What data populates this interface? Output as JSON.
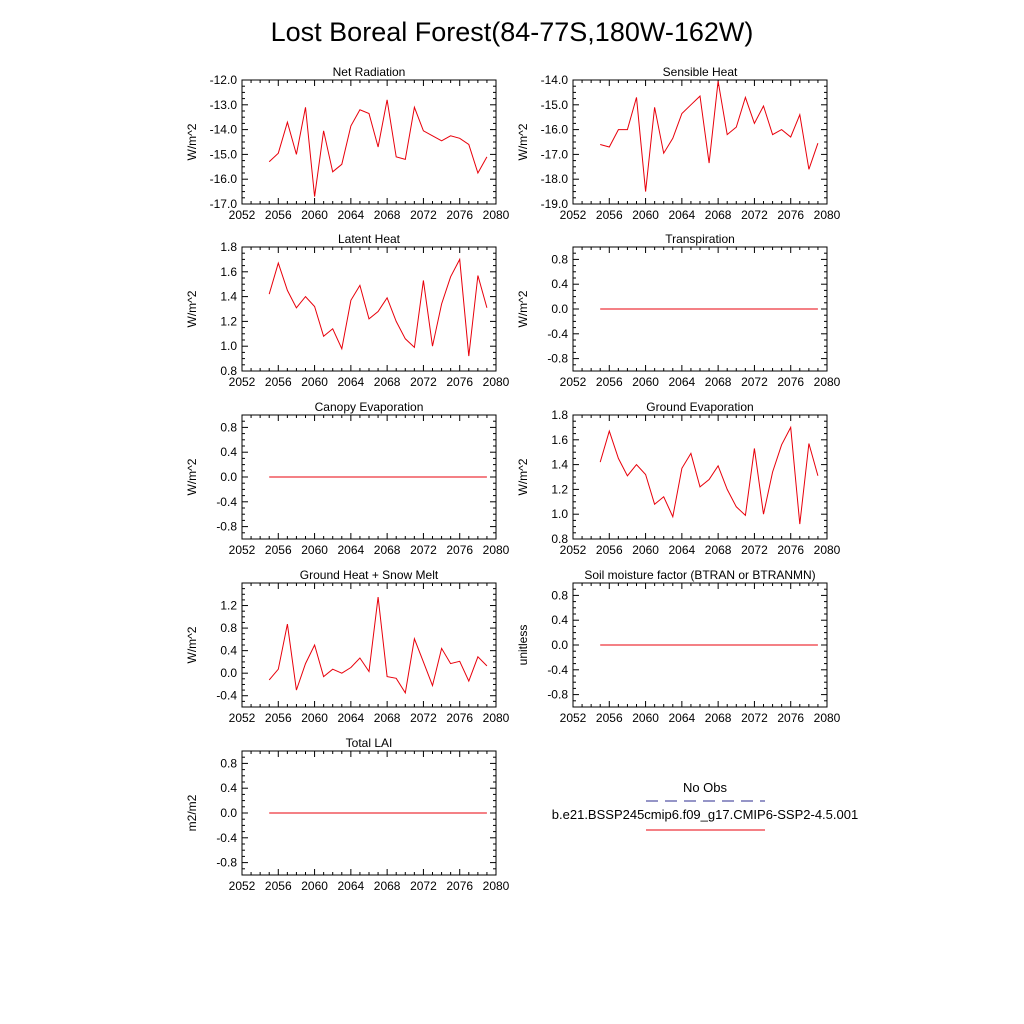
{
  "title": "Lost Boreal Forest(84-77S,180W-162W)",
  "colors": {
    "model_line": "#e8000b",
    "obs_line": "#2b2b8f",
    "axis": "#000000",
    "background": "#ffffff"
  },
  "legend": {
    "obs_label": "No Obs",
    "model_label": "b.e21.BSSP245cmip6.f09_g17.CMIP6-SSP2-4.5.001",
    "obs_style": "dashed",
    "model_style": "solid"
  },
  "chart_data": [
    {
      "type": "line",
      "title": "Net Radiation",
      "ylabel": "W/m^2",
      "xlim": [
        2052,
        2080
      ],
      "ylim": [
        -17.0,
        -12.0
      ],
      "xticks": [
        2052,
        2056,
        2060,
        2064,
        2068,
        2072,
        2076,
        2080
      ],
      "xtick_labels": [
        "2052",
        "2056",
        "2060",
        "2064",
        "2068",
        "2072",
        "2076",
        "2080"
      ],
      "yticks": [
        -17.0,
        -16.0,
        -15.0,
        -14.0,
        -13.0,
        -12.0
      ],
      "ytick_labels": [
        "-17.0",
        "-16.0",
        "-15.0",
        "-14.0",
        "-13.0",
        "-12.0"
      ],
      "x": [
        2055,
        2056,
        2057,
        2058,
        2059,
        2060,
        2061,
        2062,
        2063,
        2064,
        2065,
        2066,
        2067,
        2068,
        2069,
        2070,
        2071,
        2072,
        2073,
        2074,
        2075,
        2076,
        2077,
        2078,
        2079
      ],
      "series": [
        {
          "values": [
            -15.3,
            -14.95,
            -13.7,
            -15.0,
            -13.1,
            -16.7,
            -14.05,
            -15.7,
            -15.4,
            -13.85,
            -13.2,
            -13.35,
            -14.7,
            -12.8,
            -15.1,
            -15.2,
            -13.1,
            -14.05,
            -14.25,
            -14.45,
            -14.25,
            -14.35,
            -14.6,
            -15.75,
            -15.1
          ]
        }
      ]
    },
    {
      "type": "line",
      "title": "Sensible Heat",
      "ylabel": "W/m^2",
      "xlim": [
        2052,
        2080
      ],
      "ylim": [
        -19.0,
        -14.0
      ],
      "xticks": [
        2052,
        2056,
        2060,
        2064,
        2068,
        2072,
        2076,
        2080
      ],
      "xtick_labels": [
        "2052",
        "2056",
        "2060",
        "2064",
        "2068",
        "2072",
        "2076",
        "2080"
      ],
      "yticks": [
        -19.0,
        -18.0,
        -17.0,
        -16.0,
        -15.0,
        -14.0
      ],
      "ytick_labels": [
        "-19.0",
        "-18.0",
        "-17.0",
        "-16.0",
        "-15.0",
        "-14.0"
      ],
      "x": [
        2055,
        2056,
        2057,
        2058,
        2059,
        2060,
        2061,
        2062,
        2063,
        2064,
        2065,
        2066,
        2067,
        2068,
        2069,
        2070,
        2071,
        2072,
        2073,
        2074,
        2075,
        2076,
        2077,
        2078,
        2079
      ],
      "series": [
        {
          "values": [
            -16.6,
            -16.7,
            -16.0,
            -16.0,
            -14.7,
            -18.5,
            -15.1,
            -16.95,
            -16.35,
            -15.35,
            -15.0,
            -14.65,
            -17.35,
            -14.05,
            -16.2,
            -15.9,
            -14.7,
            -15.75,
            -15.05,
            -16.2,
            -16.0,
            -16.3,
            -15.4,
            -17.6,
            -16.55
          ]
        }
      ]
    },
    {
      "type": "line",
      "title": "Latent Heat",
      "ylabel": "W/m^2",
      "xlim": [
        2052,
        2080
      ],
      "ylim": [
        0.8,
        1.8
      ],
      "xticks": [
        2052,
        2056,
        2060,
        2064,
        2068,
        2072,
        2076,
        2080
      ],
      "xtick_labels": [
        "2052",
        "2056",
        "2060",
        "2064",
        "2068",
        "2072",
        "2076",
        "2080"
      ],
      "yticks": [
        0.8,
        1.0,
        1.2,
        1.4,
        1.6,
        1.8
      ],
      "ytick_labels": [
        "0.8",
        "1.0",
        "1.2",
        "1.4",
        "1.6",
        "1.8"
      ],
      "x": [
        2055,
        2056,
        2057,
        2058,
        2059,
        2060,
        2061,
        2062,
        2063,
        2064,
        2065,
        2066,
        2067,
        2068,
        2069,
        2070,
        2071,
        2072,
        2073,
        2074,
        2075,
        2076,
        2077,
        2078,
        2079
      ],
      "series": [
        {
          "values": [
            1.42,
            1.67,
            1.45,
            1.31,
            1.4,
            1.32,
            1.08,
            1.14,
            0.98,
            1.37,
            1.49,
            1.22,
            1.28,
            1.39,
            1.2,
            1.06,
            0.99,
            1.53,
            1.0,
            1.34,
            1.56,
            1.7,
            0.92,
            1.57,
            1.31
          ]
        }
      ]
    },
    {
      "type": "line",
      "title": "Transpiration",
      "ylabel": "W/m^2",
      "xlim": [
        2052,
        2080
      ],
      "ylim": [
        -1.0,
        1.0
      ],
      "xticks": [
        2052,
        2056,
        2060,
        2064,
        2068,
        2072,
        2076,
        2080
      ],
      "xtick_labels": [
        "2052",
        "2056",
        "2060",
        "2064",
        "2068",
        "2072",
        "2076",
        "2080"
      ],
      "yticks": [
        -0.8,
        -0.4,
        0.0,
        0.4,
        0.8
      ],
      "ytick_labels": [
        "-0.8",
        "-0.4",
        "0.0",
        "0.4",
        "0.8"
      ],
      "x": [
        2055,
        2079
      ],
      "series": [
        {
          "values": [
            0.0,
            0.0
          ]
        }
      ]
    },
    {
      "type": "line",
      "title": "Canopy Evaporation",
      "ylabel": "W/m^2",
      "xlim": [
        2052,
        2080
      ],
      "ylim": [
        -1.0,
        1.0
      ],
      "xticks": [
        2052,
        2056,
        2060,
        2064,
        2068,
        2072,
        2076,
        2080
      ],
      "xtick_labels": [
        "2052",
        "2056",
        "2060",
        "2064",
        "2068",
        "2072",
        "2076",
        "2080"
      ],
      "yticks": [
        -0.8,
        -0.4,
        0.0,
        0.4,
        0.8
      ],
      "ytick_labels": [
        "-0.8",
        "-0.4",
        "0.0",
        "0.4",
        "0.8"
      ],
      "x": [
        2055,
        2079
      ],
      "series": [
        {
          "values": [
            0.0,
            0.0
          ]
        }
      ]
    },
    {
      "type": "line",
      "title": "Ground Evaporation",
      "ylabel": "W/m^2",
      "xlim": [
        2052,
        2080
      ],
      "ylim": [
        0.8,
        1.8
      ],
      "xticks": [
        2052,
        2056,
        2060,
        2064,
        2068,
        2072,
        2076,
        2080
      ],
      "xtick_labels": [
        "2052",
        "2056",
        "2060",
        "2064",
        "2068",
        "2072",
        "2076",
        "2080"
      ],
      "yticks": [
        0.8,
        1.0,
        1.2,
        1.4,
        1.6,
        1.8
      ],
      "ytick_labels": [
        "0.8",
        "1.0",
        "1.2",
        "1.4",
        "1.6",
        "1.8"
      ],
      "x": [
        2055,
        2056,
        2057,
        2058,
        2059,
        2060,
        2061,
        2062,
        2063,
        2064,
        2065,
        2066,
        2067,
        2068,
        2069,
        2070,
        2071,
        2072,
        2073,
        2074,
        2075,
        2076,
        2077,
        2078,
        2079
      ],
      "series": [
        {
          "values": [
            1.42,
            1.67,
            1.45,
            1.31,
            1.4,
            1.32,
            1.08,
            1.14,
            0.98,
            1.37,
            1.49,
            1.22,
            1.28,
            1.39,
            1.2,
            1.06,
            0.99,
            1.53,
            1.0,
            1.34,
            1.56,
            1.7,
            0.92,
            1.57,
            1.31
          ]
        }
      ]
    },
    {
      "type": "line",
      "title": "Ground Heat + Snow Melt",
      "ylabel": "W/m^2",
      "xlim": [
        2052,
        2080
      ],
      "ylim": [
        -0.6,
        1.6
      ],
      "xticks": [
        2052,
        2056,
        2060,
        2064,
        2068,
        2072,
        2076,
        2080
      ],
      "xtick_labels": [
        "2052",
        "2056",
        "2060",
        "2064",
        "2068",
        "2072",
        "2076",
        "2080"
      ],
      "yticks": [
        -0.4,
        0.0,
        0.4,
        0.8,
        1.2
      ],
      "ytick_labels": [
        "-0.4",
        "0.0",
        "0.4",
        "0.8",
        "1.2"
      ],
      "x": [
        2055,
        2056,
        2057,
        2058,
        2059,
        2060,
        2061,
        2062,
        2063,
        2064,
        2065,
        2066,
        2067,
        2068,
        2069,
        2070,
        2071,
        2072,
        2073,
        2074,
        2075,
        2076,
        2077,
        2078,
        2079
      ],
      "series": [
        {
          "values": [
            -0.12,
            0.07,
            0.87,
            -0.3,
            0.17,
            0.5,
            -0.06,
            0.07,
            0.0,
            0.1,
            0.27,
            0.03,
            1.35,
            -0.06,
            -0.09,
            -0.35,
            0.61,
            0.2,
            -0.22,
            0.44,
            0.17,
            0.21,
            -0.14,
            0.29,
            0.13
          ]
        }
      ]
    },
    {
      "type": "line",
      "title": "Soil moisture factor (BTRAN or BTRANMN)",
      "ylabel": "unitless",
      "xlim": [
        2052,
        2080
      ],
      "ylim": [
        -1.0,
        1.0
      ],
      "xticks": [
        2052,
        2056,
        2060,
        2064,
        2068,
        2072,
        2076,
        2080
      ],
      "xtick_labels": [
        "2052",
        "2056",
        "2060",
        "2064",
        "2068",
        "2072",
        "2076",
        "2080"
      ],
      "yticks": [
        -0.8,
        -0.4,
        0.0,
        0.4,
        0.8
      ],
      "ytick_labels": [
        "-0.8",
        "-0.4",
        "0.0",
        "0.4",
        "0.8"
      ],
      "x": [
        2055,
        2079
      ],
      "series": [
        {
          "values": [
            0.0,
            0.0
          ]
        }
      ]
    },
    {
      "type": "line",
      "title": "Total LAI",
      "ylabel": "m2/m2",
      "xlim": [
        2052,
        2080
      ],
      "ylim": [
        -1.0,
        1.0
      ],
      "xticks": [
        2052,
        2056,
        2060,
        2064,
        2068,
        2072,
        2076,
        2080
      ],
      "xtick_labels": [
        "2052",
        "2056",
        "2060",
        "2064",
        "2068",
        "2072",
        "2076",
        "2080"
      ],
      "yticks": [
        -0.8,
        -0.4,
        0.0,
        0.4,
        0.8
      ],
      "ytick_labels": [
        "-0.8",
        "-0.4",
        "0.0",
        "0.4",
        "0.8"
      ],
      "x": [
        2055,
        2079
      ],
      "series": [
        {
          "values": [
            0.0,
            0.0
          ]
        }
      ]
    }
  ]
}
